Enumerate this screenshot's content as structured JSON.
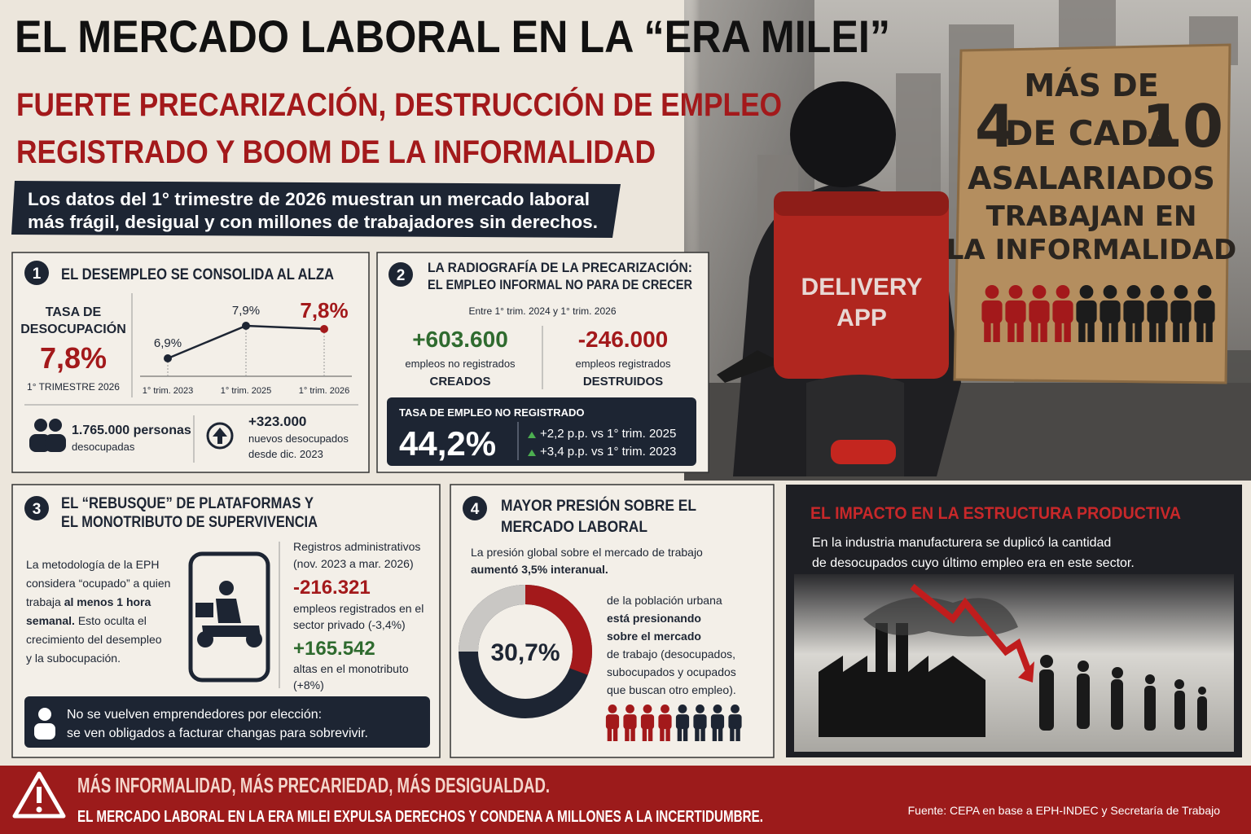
{
  "title": "EL MERCADO LABORAL EN LA “ERA MILEI”",
  "subtitle": [
    "FUERTE PRECARIZACIÓN, DESTRUCCIÓN DE EMPLEO",
    "REGISTRADO Y BOOM DE LA INFORMALIDAD"
  ],
  "intro": [
    "Los datos del 1° trimestre de 2026 muestran un mercado laboral",
    "más frágil, desigual y con millones de trabajadores sin derechos."
  ],
  "backpack": [
    "DELIVERY",
    "APP"
  ],
  "sign": {
    "top": "MÁS DE",
    "share": 4,
    "middle": "DE CADA",
    "total": 10,
    "lines": [
      "ASALARIADOS",
      "TRABAJAN EN",
      "LA INFORMALIDAD"
    ]
  },
  "panel1": {
    "number": 1,
    "title": "EL DESEMPLEO SE CONSOLIDA AL ALZA",
    "rate_label": [
      "TASA DE",
      "DESOCUPACIÓN"
    ],
    "rate": "7,8%",
    "period": "1° TRIMESTRE 2026",
    "chart": {
      "type": "line",
      "categories": [
        "1° trim. 2023",
        "1° trim. 2025",
        "1° trim. 2026"
      ],
      "values": [
        6.9,
        7.9,
        7.8
      ],
      "value_labels": [
        "6,9%",
        "7,9%",
        "7,8%"
      ]
    },
    "unemployed": [
      "1.765.000 personas",
      "desocupadas"
    ],
    "new_unemployed": [
      "+323.000",
      "nuevos desocupados",
      "desde dic. 2023"
    ]
  },
  "panel2": {
    "number": 2,
    "title": [
      "LA RADIOGRAFÍA DE LA PRECARIZACIÓN:",
      "EL EMPLEO INFORMAL NO PARA DE CRECER"
    ],
    "period": "Entre 1° trim. 2024 y 1° trim. 2026",
    "created": [
      "+603.600",
      "empleos no registrados",
      "CREADOS"
    ],
    "destroyed": [
      "-246.000",
      "empleos registrados",
      "DESTRUIDOS"
    ],
    "rate_title": "TASA DE EMPLEO NO REGISTRADO",
    "rate": "44,2%",
    "changes": [
      "+2,2 p.p. vs 1° trim. 2025",
      "+3,4 p.p. vs 1° trim. 2023"
    ]
  },
  "panel3": {
    "number": 3,
    "title": [
      "EL “REBUSQUE” DE PLATAFORMAS Y",
      "EL MONOTRIBUTO DE SUPERVIVENCIA"
    ],
    "text": [
      [
        {
          "t": "La metodología de la EPH"
        }
      ],
      [
        {
          "t": "considera “ocupado” a quien"
        }
      ],
      [
        {
          "t": "trabaja "
        },
        {
          "t": "al menos 1 hora",
          "bold": true
        }
      ],
      [
        {
          "t": "semanal.",
          "bold": true
        },
        {
          "t": " Esto oculta el"
        }
      ],
      [
        {
          "t": "crecimiento del desempleo"
        }
      ],
      [
        {
          "t": "y la subocupación."
        }
      ]
    ],
    "records": [
      "Registros administrativos",
      "(nov. 2023 a mar. 2026)"
    ],
    "registered": [
      "-216.321",
      "empleos registrados en el",
      "sector privado (-3,4%)"
    ],
    "monotributo": [
      "+165.542",
      "altas en el monotributo",
      "(+8%)"
    ],
    "note": [
      "No se vuelven emprendedores por elección:",
      "se ven obligados a facturar changas para sobrevivir."
    ]
  },
  "panel4": {
    "number": 4,
    "title": [
      "MAYOR PRESIÓN SOBRE EL",
      "MERCADO LABORAL"
    ],
    "pressure": [
      "La presión global sobre el mercado de trabajo",
      "aumentó 3,5% interanual."
    ],
    "donut": {
      "value": 30.7,
      "label": "30,7%"
    },
    "text": [
      "de la población urbana",
      "está presionando",
      "sobre el mercado",
      "de trabajo (desocupados,",
      "subocupados y ocupados",
      "que buscan otro empleo)."
    ]
  },
  "panel5": {
    "title": "EL IMPACTO EN LA ESTRUCTURA PRODUCTIVA",
    "text": [
      "En la industria manufacturera se duplicó la cantidad",
      "de desocupados cuyo último empleo era en este sector."
    ]
  },
  "footer": {
    "lines": [
      "MÁS INFORMALIDAD, MÁS PRECARIEDAD, MÁS DESIGUALDAD.",
      "EL MERCADO LABORAL EN LA ERA MILEI EXPULSA DERECHOS Y CONDENA A MILLONES A LA INCERTIDUMBRE."
    ],
    "source": "Fuente: CEPA en base a EPH-INDEC y Secretaría de Trabajo"
  }
}
